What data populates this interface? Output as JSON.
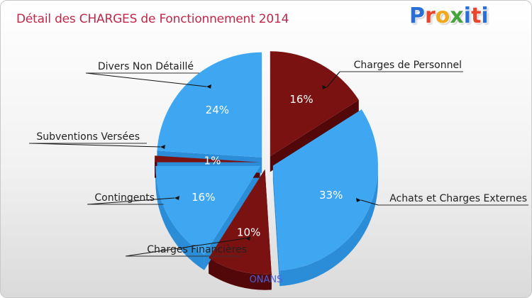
{
  "header": {
    "title": "Détail des CHARGES de Fonctionnement 2014",
    "logo_letters": [
      "P",
      "r",
      "o",
      "x",
      "i",
      "t",
      "i"
    ]
  },
  "footer": {
    "label": "ONANS"
  },
  "colors": {
    "blue": "#3fa7f2",
    "blue_side": "#2b8dd8",
    "red": "#7a1212",
    "red_side": "#520808",
    "title": "#c0284a",
    "footer": "#4a5fd8"
  },
  "chart_data": {
    "type": "pie",
    "title": "Détail des CHARGES de Fonctionnement 2014",
    "slices": [
      {
        "label": "Charges de Personnel",
        "value": 16,
        "display": "16%",
        "color": "#7a1212"
      },
      {
        "label": "Achats et Charges Externes",
        "value": 33,
        "display": "33%",
        "color": "#3fa7f2"
      },
      {
        "label": "Charges Financières",
        "value": 10,
        "display": "10%",
        "color": "#7a1212"
      },
      {
        "label": "Contingents",
        "value": 16,
        "display": "16%",
        "color": "#3fa7f2"
      },
      {
        "label": "Subventions Versées",
        "value": 1,
        "display": "1%",
        "color": "#7a1212"
      },
      {
        "label": "Divers Non Détaillé",
        "value": 24,
        "display": "24%",
        "color": "#3fa7f2"
      }
    ]
  }
}
